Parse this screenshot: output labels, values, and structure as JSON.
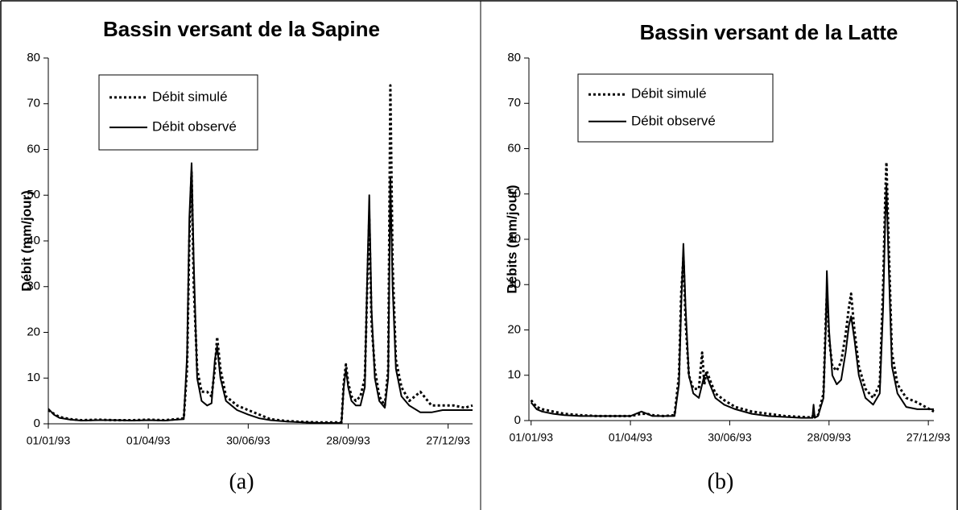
{
  "chart_data": [
    {
      "type": "line",
      "title": "Bassin versant de la Sapine",
      "y_label": "Débit (mm/jour)",
      "caption": "(a)",
      "x": [
        0,
        5,
        10,
        20,
        30,
        45,
        60,
        75,
        90,
        105,
        115,
        122,
        125,
        127,
        129,
        131,
        134,
        138,
        143,
        147,
        150,
        152,
        155,
        160,
        165,
        170,
        180,
        190,
        200,
        215,
        230,
        245,
        260,
        264,
        266,
        268,
        270,
        273,
        277,
        281,
        285,
        287,
        289,
        291,
        294,
        298,
        303,
        306,
        308,
        310,
        313,
        318,
        325,
        335,
        345,
        355,
        365,
        375,
        382
      ],
      "xlim": [
        0,
        382
      ],
      "xticks": [
        {
          "value": 0,
          "label": "01/01/93"
        },
        {
          "value": 90,
          "label": "01/04/93"
        },
        {
          "value": 180,
          "label": "30/06/93"
        },
        {
          "value": 270,
          "label": "28/09/93"
        },
        {
          "value": 360,
          "label": "27/12/93"
        }
      ],
      "ylim": [
        0,
        80
      ],
      "yticks": [
        0,
        10,
        20,
        30,
        40,
        50,
        60,
        70,
        80
      ],
      "legend": "upper left",
      "series": [
        {
          "name": "Débit simulé",
          "color": "#000000",
          "style": "dotted",
          "values": [
            3,
            2.2,
            1.5,
            1,
            0.8,
            0.9,
            0.8,
            0.8,
            0.9,
            0.8,
            1,
            1.2,
            12,
            40,
            55,
            30,
            12,
            7,
            7,
            6,
            12,
            19,
            12,
            6,
            5,
            4,
            3,
            2,
            1,
            0.6,
            0.4,
            0.3,
            0.3,
            0.3,
            9,
            13,
            9,
            6,
            5,
            6,
            10,
            28,
            45,
            22,
            12,
            6,
            4,
            12,
            74,
            35,
            14,
            8,
            5,
            7,
            4,
            4,
            4,
            3.5,
            4
          ]
        },
        {
          "name": "Débit observé",
          "color": "#000000",
          "style": "solid",
          "values": [
            3.3,
            2,
            1.3,
            0.9,
            0.7,
            0.8,
            0.8,
            0.7,
            0.8,
            0.7,
            0.9,
            1,
            15,
            45,
            57,
            35,
            10,
            5,
            4,
            4.5,
            14,
            17,
            10,
            5,
            4,
            3,
            2,
            1.2,
            0.8,
            0.5,
            0.3,
            0.2,
            0.2,
            0.2,
            8,
            12,
            8,
            5,
            4,
            4,
            8,
            30,
            50,
            25,
            10,
            5,
            3.5,
            10,
            54,
            30,
            12,
            6,
            4,
            2.5,
            2.5,
            3,
            3,
            3,
            3
          ]
        }
      ]
    },
    {
      "type": "line",
      "title": "Bassin versant de la Latte",
      "y_label": "Débits (mm/jour)",
      "caption": "(b)",
      "x": [
        0,
        5,
        10,
        20,
        30,
        45,
        60,
        75,
        90,
        100,
        105,
        110,
        120,
        130,
        134,
        136,
        138,
        140,
        143,
        147,
        152,
        155,
        157,
        159,
        162,
        167,
        175,
        185,
        200,
        215,
        230,
        245,
        255,
        256,
        257,
        260,
        265,
        267,
        268,
        270,
        273,
        277,
        281,
        285,
        288,
        290,
        293,
        297,
        303,
        310,
        316,
        319,
        321,
        322,
        324,
        327,
        332,
        340,
        350,
        365
      ],
      "xlim": [
        -2,
        365
      ],
      "xticks": [
        {
          "value": 0,
          "label": "01/01/93"
        },
        {
          "value": 90,
          "label": "01/04/93"
        },
        {
          "value": 180,
          "label": "30/06/93"
        },
        {
          "value": 270,
          "label": "28/09/93"
        },
        {
          "value": 360,
          "label": "27/12/93"
        }
      ],
      "ylim": [
        0,
        80
      ],
      "yticks": [
        0,
        10,
        20,
        30,
        40,
        50,
        60,
        70,
        80
      ],
      "legend": "upper left",
      "series": [
        {
          "name": "Débit simulé",
          "color": "#000000",
          "style": "dotted",
          "values": [
            4.5,
            3,
            2.5,
            2,
            1.5,
            1.2,
            1,
            1,
            1,
            1.5,
            1.5,
            1.2,
            1,
            1.2,
            10,
            28,
            36,
            22,
            10,
            7,
            7,
            15,
            8,
            11,
            9,
            6,
            4.5,
            3,
            2,
            1.5,
            1,
            0.8,
            0.7,
            2,
            0.8,
            1.2,
            6,
            22,
            28,
            18,
            12,
            11,
            13,
            19,
            25,
            28,
            20,
            12,
            7,
            5,
            8,
            30,
            50,
            57,
            40,
            15,
            8,
            5,
            4,
            2
          ]
        },
        {
          "name": "Débit observé",
          "color": "#000000",
          "style": "solid",
          "values": [
            4,
            2.5,
            2,
            1.5,
            1.2,
            1,
            1,
            1,
            1,
            2,
            1.5,
            1,
            1,
            1,
            8,
            25,
            39,
            25,
            10,
            6,
            5,
            8,
            10,
            10,
            8,
            5,
            3.5,
            2.5,
            1.5,
            1,
            0.8,
            0.6,
            0.6,
            3.5,
            0.6,
            1,
            5,
            20,
            33,
            20,
            10,
            8,
            9,
            15,
            21,
            23,
            18,
            10,
            5,
            3.5,
            6,
            25,
            45,
            52,
            35,
            12,
            6,
            3,
            2.5,
            2.5
          ]
        }
      ]
    }
  ]
}
